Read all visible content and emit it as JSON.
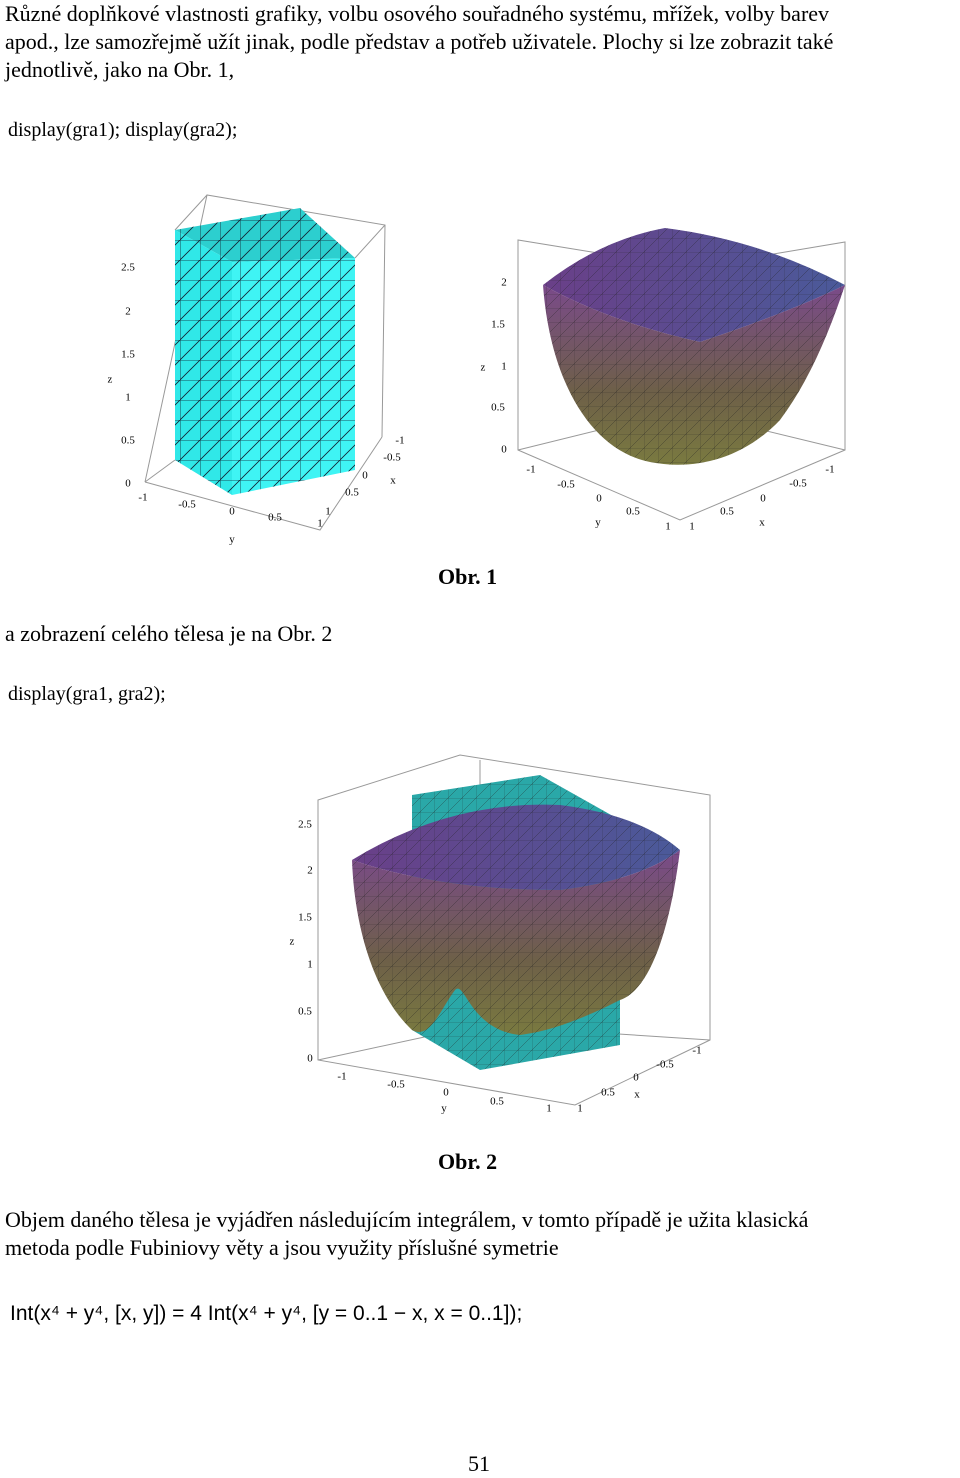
{
  "paragraph1": {
    "lines": [
      "Různé doplňkové vlastnosti grafiky, volbu osového souřadného systému, mřížek, volby barev",
      "apod., lze samozřejmě užít jinak, podle představ a potřeb uživatele. Plochy si lze zobrazit také",
      "jednotlivě, jako na Obr. 1,"
    ]
  },
  "code1": "display(gra1); display(gra2);",
  "figure1": {
    "caption": "Obr. 1",
    "plots": [
      {
        "z_ticks": [
          "0",
          "0.5",
          "1",
          "1.5",
          "2",
          "2.5"
        ],
        "z_label": "z",
        "y_ticks": [
          "-1",
          "-0.5",
          "0",
          "0.5",
          "1"
        ],
        "y_label": "y",
        "x_ticks": [
          "-1",
          "-0.5",
          "0",
          "0.5",
          "1"
        ],
        "x_label": "x"
      },
      {
        "z_ticks": [
          "0",
          "0.5",
          "1",
          "1.5",
          "2"
        ],
        "z_label": "z",
        "y_ticks": [
          "-1",
          "-0.5",
          "0",
          "0.5",
          "1"
        ],
        "y_label": "y",
        "x_ticks": [
          "1",
          "0.5",
          "0",
          "-0.5",
          "-1"
        ],
        "x_label": "x"
      }
    ]
  },
  "paragraph2": "a zobrazení celého tělesa je na Obr. 2",
  "code2": "display(gra1, gra2);",
  "figure2": {
    "caption": "Obr. 2",
    "plots": [
      {
        "z_ticks": [
          "0",
          "0.5",
          "1",
          "1.5",
          "2",
          "2.5"
        ],
        "z_label": "z",
        "y_ticks": [
          "-1",
          "-0.5",
          "0",
          "0.5",
          "1"
        ],
        "y_label": "y",
        "x_ticks": [
          "1",
          "0.5",
          "0",
          "-0.5",
          "-1"
        ],
        "x_label": "x"
      }
    ]
  },
  "paragraph3": {
    "lines": [
      "Objem daného tělesa je vyjádřen následujícím integrálem, v tomto případě je užita klasická",
      "metoda podle Fubiniovy věty a jsou využity příslušné symetrie"
    ]
  },
  "formula": "Int(x⁴ + y⁴, [x, y]) = 4  Int(x⁴ + y⁴, [y = 0..1 − x, x = 0..1]);",
  "page_number": "51"
}
